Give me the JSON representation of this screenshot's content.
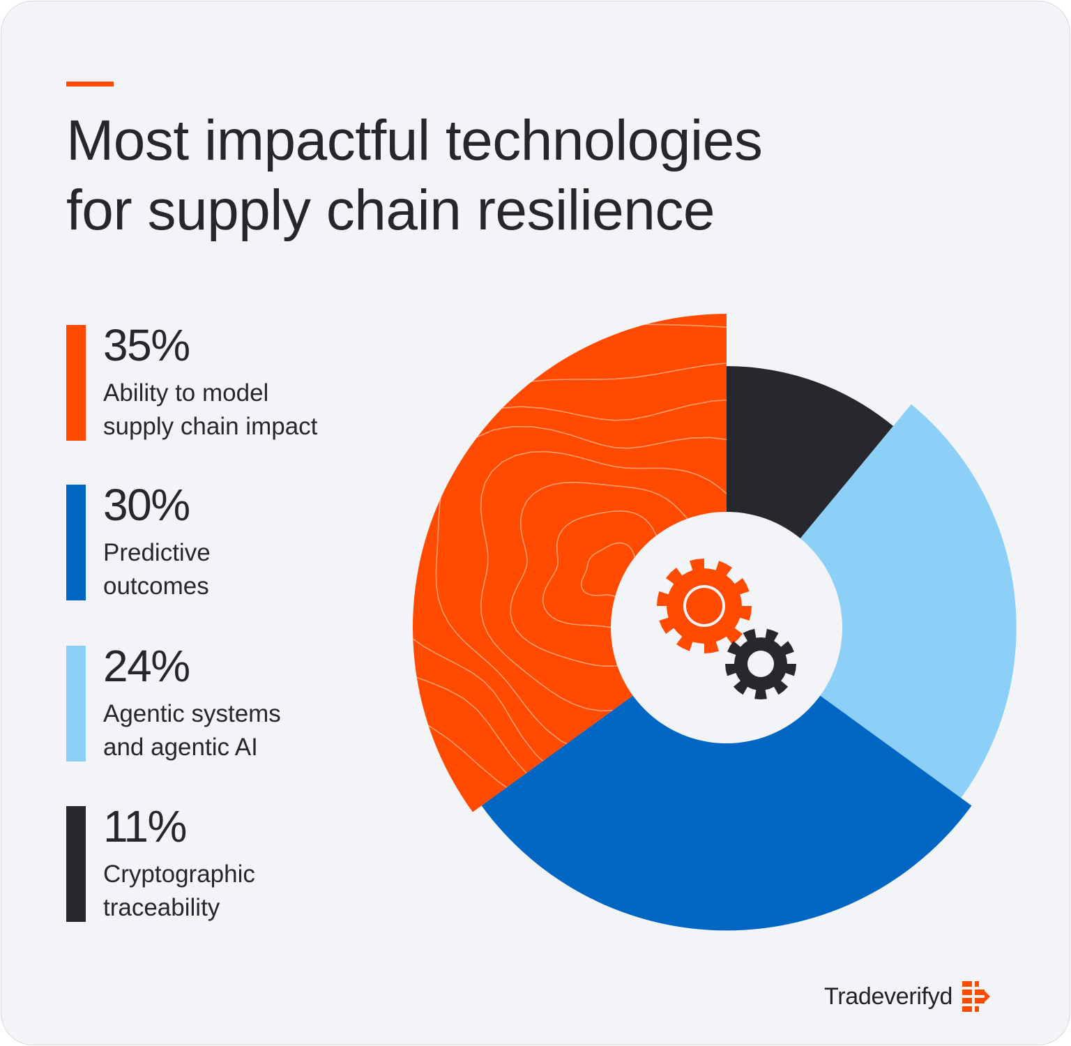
{
  "title": {
    "line1": "Most impactful technologies",
    "line2": "for supply chain resilience"
  },
  "colors": {
    "accent": "#ff4a00",
    "orange": "#ff4a00",
    "dark_blue": "#0066c4",
    "light_blue": "#8ccff7",
    "charcoal": "#26282d",
    "background": "#f2f4f7",
    "text": "#25272c"
  },
  "legend": [
    {
      "value": "35%",
      "label_line1": "Ability to model",
      "label_line2": "supply chain impact",
      "color": "#ff4a00"
    },
    {
      "value": "30%",
      "label_line1": "Predictive",
      "label_line2": "outcomes",
      "color": "#0066c4"
    },
    {
      "value": "24%",
      "label_line1": "Agentic systems",
      "label_line2": "and agentic AI",
      "color": "#8ccff7"
    },
    {
      "value": "11%",
      "label_line1": "Cryptographic",
      "label_line2": "traceability",
      "color": "#26282d"
    }
  ],
  "chart_data": {
    "type": "pie",
    "variant": "radial-donut",
    "title": "Most impactful technologies for supply chain resilience",
    "categories": [
      "Ability to model supply chain impact",
      "Predictive outcomes",
      "Agentic systems and agentic AI",
      "Cryptographic traceability"
    ],
    "values": [
      35,
      30,
      24,
      11
    ],
    "unit": "%",
    "colors": [
      "#ff4a00",
      "#0066c4",
      "#8ccff7",
      "#26282d"
    ],
    "order": "clockwise from 12 o'clock: Cryptographic traceability, Agentic systems and agentic AI, Predictive outcomes, Ability to model supply chain impact",
    "legend_position": "left",
    "center_icon": "gears-icon"
  },
  "brand": {
    "name": "Tradeverifyd",
    "icon": "tradeverifyd-logo-icon"
  }
}
